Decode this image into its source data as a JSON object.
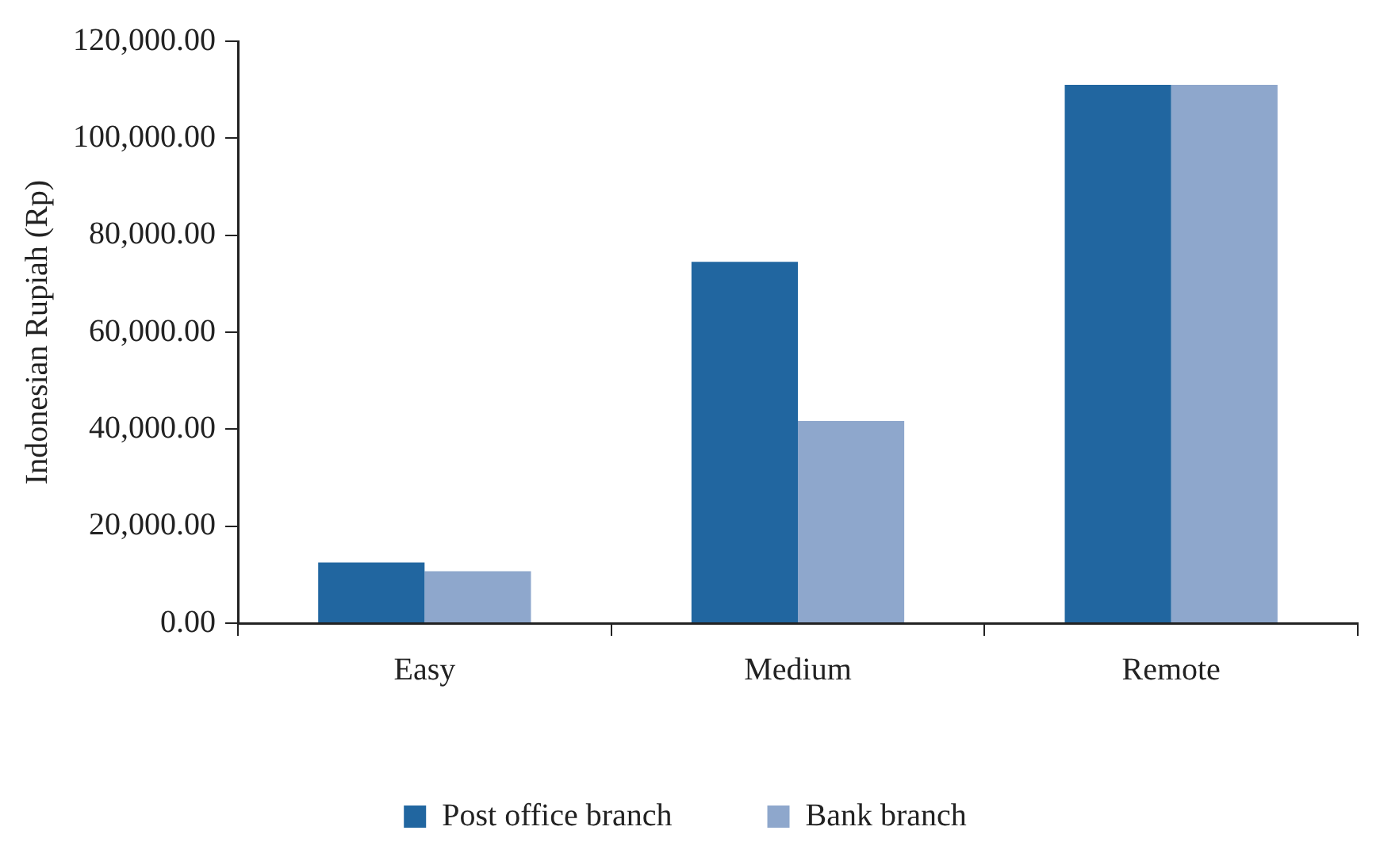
{
  "chart_data": {
    "type": "bar",
    "ylabel": "Indonesian Rupiah (Rp)",
    "categories": [
      "Easy",
      "Medium",
      "Remote"
    ],
    "series": [
      {
        "name": "Post office branch",
        "color": "#2166a0",
        "values": [
          12500,
          74500,
          111000
        ]
      },
      {
        "name": "Bank branch",
        "color": "#8ea7cc",
        "values": [
          10700,
          41700,
          111000
        ]
      }
    ],
    "ylim": [
      0,
      120000
    ],
    "yticks": [
      {
        "value": 0,
        "label": "0.00"
      },
      {
        "value": 20000,
        "label": "20,000.00"
      },
      {
        "value": 40000,
        "label": "40,000.00"
      },
      {
        "value": 60000,
        "label": "60,000.00"
      },
      {
        "value": 80000,
        "label": "80,000.00"
      },
      {
        "value": 100000,
        "label": "100,000.00"
      },
      {
        "value": 120000,
        "label": "120,000.00"
      }
    ],
    "grid": false,
    "legend": "bottom"
  }
}
